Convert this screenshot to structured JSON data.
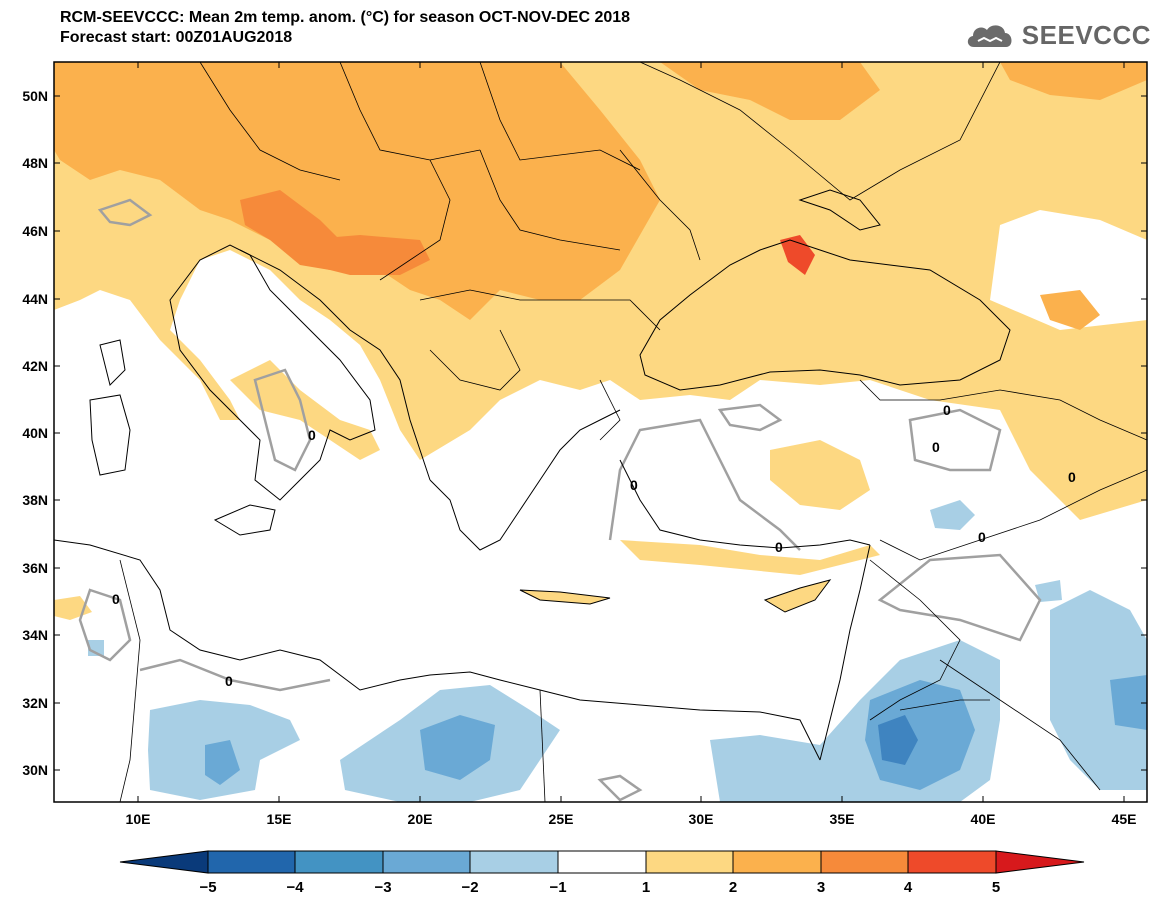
{
  "title": {
    "line1": "RCM-SEEVCCC: Mean 2m temp. anom. (°C) for season OCT-NOV-DEC 2018",
    "line2": "Forecast start: 00Z01AUG2018"
  },
  "logo": {
    "text": "SEEVCCC",
    "icon": "cloud-icon"
  },
  "map": {
    "lat_labels": [
      "50N",
      "48N",
      "46N",
      "44N",
      "42N",
      "40N",
      "38N",
      "36N",
      "34N",
      "32N",
      "30N"
    ],
    "lon_labels": [
      "10E",
      "15E",
      "20E",
      "25E",
      "30E",
      "35E",
      "40E",
      "45E"
    ],
    "contour_labels": [
      "0",
      "0",
      "0",
      "0",
      "0",
      "0",
      "0",
      "0",
      "0"
    ],
    "colors": {
      "land_bg": "#ffffff",
      "warm1": "#fdd882",
      "warm2": "#fbb14d",
      "warm3": "#f68a3a",
      "warm4": "#ee4a2a",
      "cool1": "#a8cfe5",
      "cool2": "#6aa9d5",
      "cool3": "#3f84c0",
      "contour": "#a0a0a0"
    }
  },
  "colorbar": {
    "labels": [
      "−5",
      "−4",
      "−3",
      "−2",
      "−1",
      "1",
      "2",
      "3",
      "4",
      "5"
    ],
    "colors": [
      "#0a3a7a",
      "#2166ac",
      "#4393c3",
      "#6aa9d5",
      "#a8cfe5",
      "#ffffff",
      "#fdd882",
      "#fbb14d",
      "#f68a3a",
      "#ee4a2a",
      "#d7191c"
    ]
  }
}
